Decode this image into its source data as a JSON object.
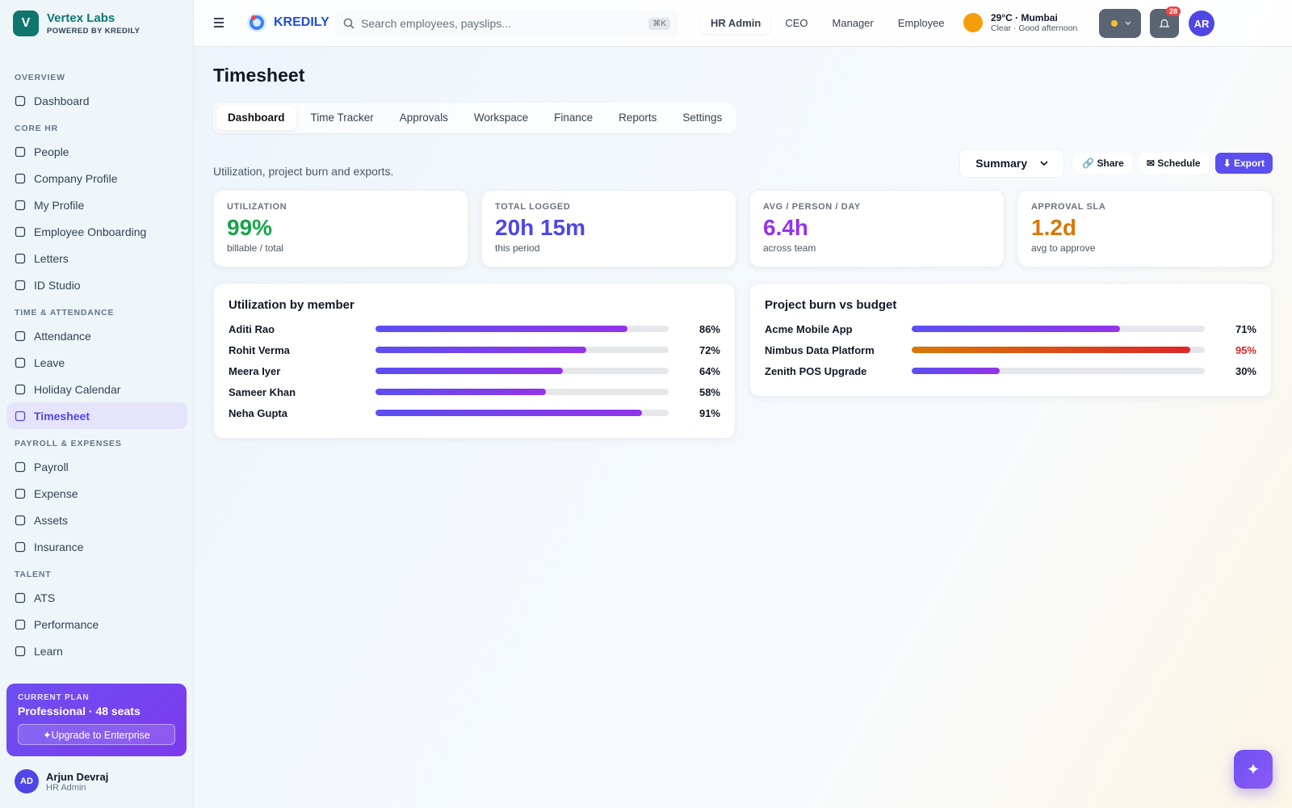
{
  "brand": {
    "logo": "V",
    "name": "Vertex Labs",
    "tagline": "POWERED BY KREDILY"
  },
  "sidebar": {
    "sections": [
      {
        "title": "OVERVIEW",
        "items": [
          {
            "label": "Dashboard"
          }
        ]
      },
      {
        "title": "CORE HR",
        "items": [
          {
            "label": "People"
          },
          {
            "label": "Company Profile"
          },
          {
            "label": "My Profile"
          },
          {
            "label": "Employee Onboarding"
          },
          {
            "label": "Letters"
          },
          {
            "label": "ID Studio"
          }
        ]
      },
      {
        "title": "TIME & ATTENDANCE",
        "items": [
          {
            "label": "Attendance"
          },
          {
            "label": "Leave"
          },
          {
            "label": "Holiday Calendar"
          },
          {
            "label": "Timesheet",
            "active": true
          }
        ]
      },
      {
        "title": "PAYROLL & EXPENSES",
        "items": [
          {
            "label": "Payroll"
          },
          {
            "label": "Expense"
          },
          {
            "label": "Assets"
          },
          {
            "label": "Insurance"
          }
        ]
      },
      {
        "title": "TALENT",
        "items": [
          {
            "label": "ATS"
          },
          {
            "label": "Performance"
          },
          {
            "label": "Learn"
          }
        ]
      }
    ]
  },
  "plan": {
    "label": "CURRENT PLAN",
    "name": "Professional · 48 seats",
    "button": "✦Upgrade to Enterprise"
  },
  "user": {
    "initials": "AD",
    "name": "Arjun Devraj",
    "role": "HR Admin"
  },
  "topbar": {
    "logo": "KREDILY",
    "search": "Search employees, payslips...",
    "shortcut": "⌘K",
    "roles": [
      {
        "label": "HR Admin",
        "active": true
      },
      {
        "label": "CEO"
      },
      {
        "label": "Manager"
      },
      {
        "label": "Employee"
      }
    ],
    "weather": {
      "temp": "29°C · Mumbai",
      "desc": "Clear · Good afternoon"
    },
    "notifications": 28,
    "avatar": "AR"
  },
  "page": {
    "title": "Timesheet",
    "tabs": [
      {
        "label": "Dashboard",
        "active": true
      },
      {
        "label": "Time Tracker"
      },
      {
        "label": "Approvals"
      },
      {
        "label": "Workspace"
      },
      {
        "label": "Finance"
      },
      {
        "label": "Reports"
      },
      {
        "label": "Settings"
      }
    ],
    "subtitle": "Utilization, project burn and exports.",
    "view": "Summary",
    "actions": [
      "🔗 Share",
      "✉ Schedule",
      "⬇ Export"
    ]
  },
  "stats": [
    {
      "label": "UTILIZATION",
      "value": "99%",
      "note": "billable / total",
      "color": "#16a34a"
    },
    {
      "label": "TOTAL LOGGED",
      "value": "20h 15m",
      "note": "this period",
      "color": "#4f46e5"
    },
    {
      "label": "AVG / PERSON / DAY",
      "value": "6.4h",
      "note": "across team",
      "color": "#9333ea"
    },
    {
      "label": "APPROVAL SLA",
      "value": "1.2d",
      "note": "avg to approve",
      "color": "#d97706"
    }
  ],
  "panels": [
    {
      "title": "Utilization by member",
      "rows": [
        {
          "name": "Aditi Rao",
          "value": 86,
          "value_label": "86%"
        },
        {
          "name": "Rohit Verma",
          "value": 72,
          "value_label": "72%"
        },
        {
          "name": "Meera Iyer",
          "value": 64,
          "value_label": "64%"
        },
        {
          "name": "Sameer Khan",
          "value": 58,
          "value_label": "58%"
        },
        {
          "name": "Neha Gupta",
          "value": 91,
          "value_label": "91%"
        }
      ]
    },
    {
      "title": "Project burn vs budget",
      "rows": [
        {
          "name": "Acme Mobile App",
          "value": 71,
          "value_label": "71%"
        },
        {
          "name": "Nimbus Data Platform",
          "value": 95,
          "value_label": "95%",
          "alert": true
        },
        {
          "name": "Zenith POS Upgrade",
          "value": 30,
          "value_label": "30%"
        }
      ]
    }
  ]
}
